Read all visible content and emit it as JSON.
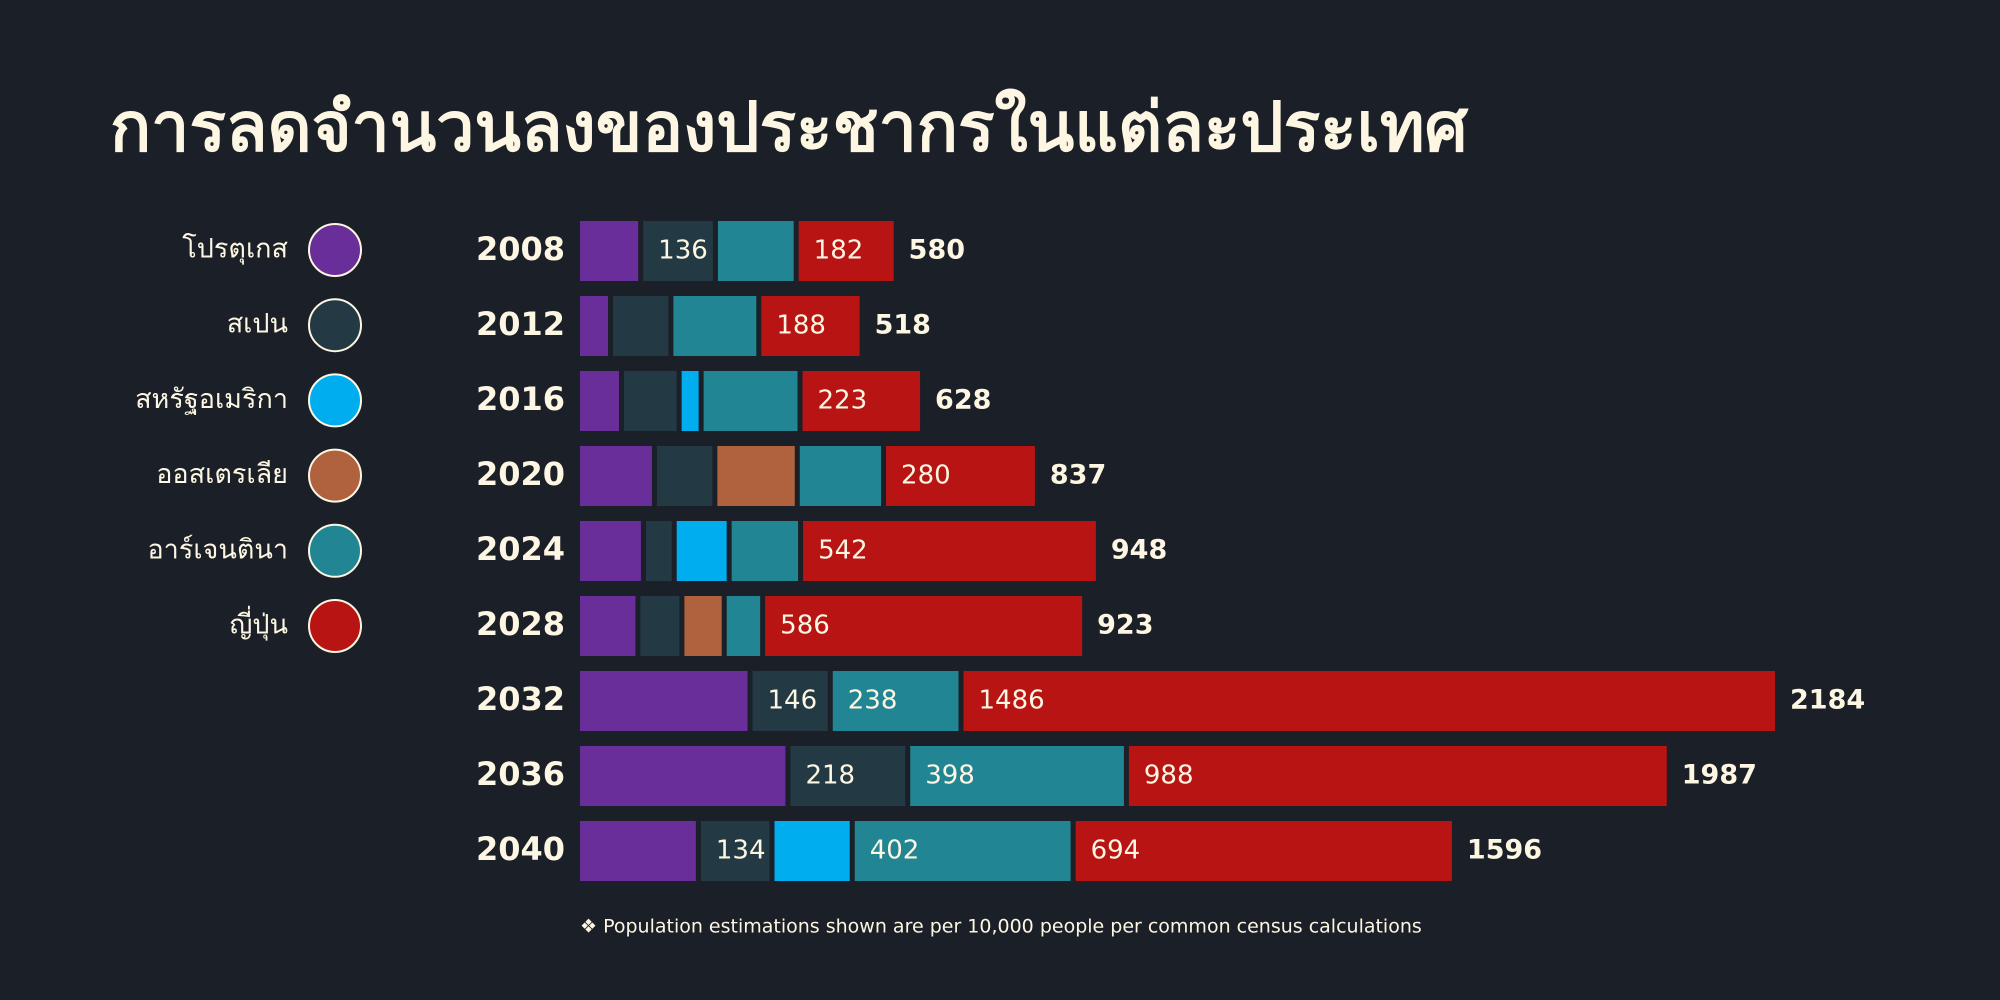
{
  "chart_data": {
    "type": "stacked-bar-horizontal",
    "title": "การลดจำนวนลงของประชากรในแต่ละประเทศ",
    "footnote": "❖ Population estimations shown are per 10,000 people per common census calculations",
    "categories": [
      "2008",
      "2012",
      "2016",
      "2020",
      "2024",
      "2028",
      "2032",
      "2036",
      "2040"
    ],
    "totals": [
      580,
      518,
      628,
      837,
      948,
      923,
      2184,
      1987,
      1596
    ],
    "series": [
      {
        "name": "โปรตุเกส",
        "color": "#6a2e9a",
        "values": [
          115,
          60,
          80,
          140,
          120,
          110,
          314,
          383,
          220
        ],
        "value_labels": [
          null,
          null,
          null,
          null,
          null,
          null,
          null,
          null,
          null
        ]
      },
      {
        "name": "สเปน",
        "color": "#233a44",
        "values": [
          136,
          110,
          105,
          110,
          56,
          80,
          146,
          218,
          134
        ],
        "value_labels": [
          "136",
          null,
          null,
          null,
          null,
          null,
          "146",
          "218",
          "134"
        ]
      },
      {
        "name": "สหรัฐอเมริกา",
        "color": "#00aeef",
        "values": [
          null,
          null,
          40,
          null,
          100,
          null,
          null,
          null,
          146
        ],
        "value_labels": [
          null,
          null,
          null,
          null,
          null,
          null,
          null,
          null,
          null
        ]
      },
      {
        "name": "ออสเตรเลีย",
        "color": "#b0623e",
        "values": [
          null,
          null,
          null,
          150,
          null,
          77,
          null,
          null,
          null
        ],
        "value_labels": [
          null,
          null,
          null,
          null,
          null,
          null,
          null,
          null,
          null
        ]
      },
      {
        "name": "อาร์เจนตินา",
        "color": "#228593",
        "values": [
          147,
          160,
          180,
          157,
          130,
          70,
          238,
          398,
          402
        ],
        "value_labels": [
          null,
          null,
          null,
          null,
          null,
          null,
          "238",
          "398",
          "402"
        ]
      },
      {
        "name": "ญี่ปุ่น",
        "color": "#b81414",
        "values": [
          182,
          188,
          223,
          280,
          542,
          586,
          1486,
          988,
          694
        ],
        "value_labels": [
          "182",
          "188",
          "223",
          "280",
          "542",
          "586",
          "1486",
          "988",
          "694"
        ]
      }
    ]
  }
}
